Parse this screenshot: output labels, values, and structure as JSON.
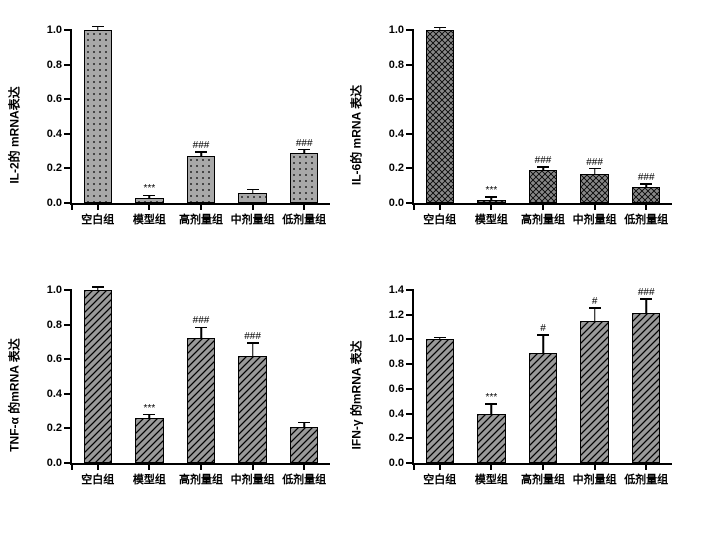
{
  "categories": [
    "空白组",
    "模型组",
    "高剂量组",
    "中剂量组",
    "低剂量组"
  ],
  "bar_width": 0.55,
  "slot_count": 5,
  "charts": [
    {
      "type": "bar",
      "ylabel": "IL-2的 mRNA表达",
      "ylim": [
        0.0,
        1.0
      ],
      "yticks": [
        0.0,
        0.2,
        0.4,
        0.6,
        0.8,
        1.0
      ],
      "pattern": "dots",
      "fill_color": "#a8a8a8",
      "values": [
        1.0,
        0.03,
        0.27,
        0.06,
        0.29
      ],
      "errors": [
        0.015,
        0.01,
        0.02,
        0.015,
        0.015
      ],
      "annotations": [
        "",
        "***",
        "###",
        "",
        "###"
      ],
      "background_color": "#ffffff",
      "label_fontsize": 12
    },
    {
      "type": "bar",
      "ylabel": "IL-6的 mRNA 表达",
      "ylim": [
        0.0,
        1.0
      ],
      "yticks": [
        0.0,
        0.2,
        0.4,
        0.6,
        0.8,
        1.0
      ],
      "pattern": "cross",
      "fill_color": "#888888",
      "values": [
        1.0,
        0.02,
        0.19,
        0.17,
        0.09
      ],
      "errors": [
        0.01,
        0.01,
        0.015,
        0.025,
        0.015
      ],
      "annotations": [
        "",
        "***",
        "###",
        "###",
        "###"
      ],
      "background_color": "#ffffff",
      "label_fontsize": 12
    },
    {
      "type": "bar",
      "ylabel": "TNF-α 的mRNA 表达",
      "ylim": [
        0.0,
        1.0
      ],
      "yticks": [
        0.0,
        0.2,
        0.4,
        0.6,
        0.8,
        1.0
      ],
      "pattern": "diag",
      "fill_color": "#9a9a9a",
      "values": [
        1.0,
        0.26,
        0.72,
        0.62,
        0.21
      ],
      "errors": [
        0.012,
        0.015,
        0.06,
        0.07,
        0.02
      ],
      "annotations": [
        "",
        "***",
        "###",
        "###",
        ""
      ],
      "background_color": "#ffffff",
      "label_fontsize": 12
    },
    {
      "type": "bar",
      "ylabel": "IFN-γ 的mRNA 表达",
      "ylim": [
        0.0,
        1.4
      ],
      "yticks": [
        0.0,
        0.2,
        0.4,
        0.6,
        0.8,
        1.0,
        1.2,
        1.4
      ],
      "pattern": "diag",
      "fill_color": "#9a9a9a",
      "values": [
        1.0,
        0.4,
        0.89,
        1.15,
        1.21
      ],
      "errors": [
        0.01,
        0.07,
        0.14,
        0.1,
        0.11
      ],
      "annotations": [
        "",
        "***",
        "#",
        "#",
        "###"
      ],
      "background_color": "#ffffff",
      "label_fontsize": 12
    }
  ],
  "colors": {
    "axis": "#000000",
    "text": "#000000"
  }
}
